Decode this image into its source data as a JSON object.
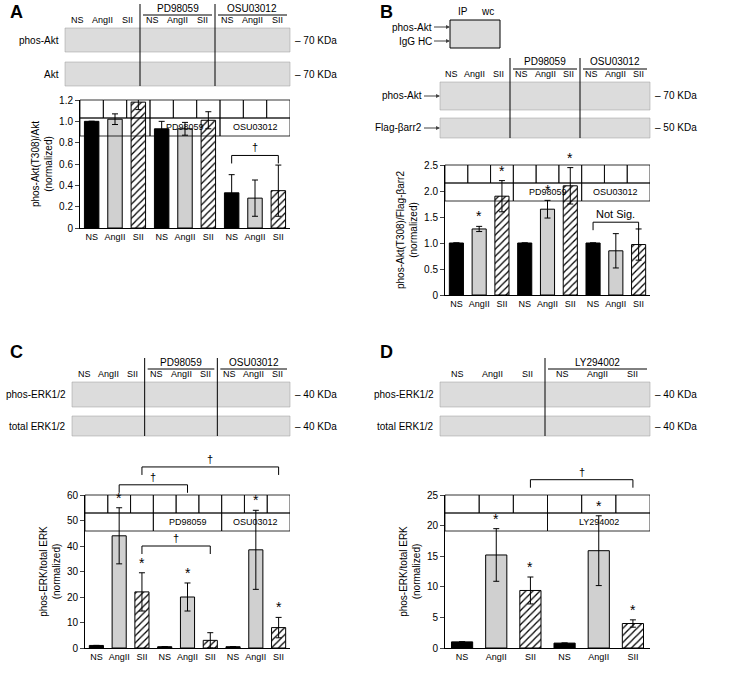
{
  "panel_labels": [
    "A",
    "B",
    "C",
    "D"
  ],
  "blots": [
    {
      "rows": [
        {
          "name": "phos-Akt",
          "kda_label": "– 70 KDa"
        },
        {
          "name": "Akt",
          "kda_label": "– 70 KDa"
        }
      ]
    },
    {
      "inset": {
        "headers": [
          "IP",
          "wc"
        ],
        "rows": [
          {
            "name": "phos-Akt",
            "marker": "arrow"
          },
          {
            "name": "IgG HC",
            "marker": "arrow"
          }
        ]
      },
      "rows": [
        {
          "name": "phos-Akt",
          "marker": "arrow",
          "kda_label": "– 70 KDa"
        },
        {
          "name": "Flag-βarr2",
          "marker": "arrow",
          "kda_label": "– 50 KDa"
        }
      ]
    },
    {
      "rows": [
        {
          "name": "phos-ERK1/2",
          "kda_label": "– 40 KDa"
        },
        {
          "name": "total ERK1/2",
          "kda_label": "– 40 KDa"
        }
      ]
    },
    {
      "rows": [
        {
          "name": "phos-ERK1/2",
          "kda_label": "– 40 KDa"
        },
        {
          "name": "total ERK1/2",
          "kda_label": "– 40 KDa"
        }
      ]
    }
  ],
  "chart_data": [
    {
      "type": "bar",
      "groups": [
        null,
        "PD98059",
        "OSU03012"
      ],
      "ylabel": [
        "phos-Akt(T308)/Akt",
        "(normalized)"
      ],
      "ylim": [
        0,
        1.2
      ],
      "yticks": [
        0,
        0.2,
        0.4,
        0.6,
        0.8,
        {
          "value": 1,
          "label": "1.0"
        },
        1.2
      ],
      "series": [
        {
          "name": "NS",
          "color": "#000000",
          "values": [
            1,
            0.93,
            0.33
          ],
          "errors": [
            0,
            0.07,
            0.17
          ],
          "significance": [
            null,
            null,
            null
          ]
        },
        {
          "name": "AngII",
          "color": "#d0d0d0",
          "values": [
            1.02,
            0.93,
            0.28
          ],
          "errors": [
            0.05,
            0.06,
            0.17
          ],
          "significance": [
            null,
            null,
            null
          ]
        },
        {
          "name": "SII",
          "color": "#ffffff",
          "marker": "hatched",
          "values": [
            1.18,
            1.01,
            0.35
          ],
          "errors": [
            0.07,
            0.08,
            0.24
          ],
          "significance": [
            null,
            null,
            null
          ]
        }
      ],
      "brackets": [
        {
          "from": 6,
          "to": 8,
          "y": 0.68,
          "label": "†"
        }
      ]
    },
    {
      "type": "bar",
      "groups": [
        null,
        "PD98059",
        "OSU03012"
      ],
      "ylabel": [
        "phos-Akt(T308)/Flag-βarr2",
        "(normalized)"
      ],
      "ylim": [
        0,
        2.5
      ],
      "yticks": [
        0,
        0.5,
        {
          "value": 1,
          "label": "1.0"
        },
        1.5,
        {
          "value": 2,
          "label": "2.0"
        },
        2.5
      ],
      "series": [
        {
          "name": "NS",
          "color": "#000000",
          "values": [
            1,
            1,
            1
          ],
          "errors": [
            0,
            0,
            0
          ],
          "significance": [
            null,
            null,
            null
          ]
        },
        {
          "name": "AngII",
          "color": "#d0d0d0",
          "values": [
            1.27,
            1.65,
            0.85
          ],
          "errors": [
            0.05,
            0.17,
            0.33
          ],
          "significance": [
            "*",
            "*",
            null
          ]
        },
        {
          "name": "SII",
          "color": "#ffffff",
          "marker": "hatched",
          "values": [
            1.9,
            2.1,
            0.97
          ],
          "errors": [
            0.3,
            0.35,
            0.3
          ],
          "significance": [
            "*",
            "*",
            null
          ]
        }
      ],
      "brackets": [
        {
          "from": 6,
          "to": 8,
          "y": 1.4,
          "label": "Not Sig."
        }
      ]
    },
    {
      "type": "bar",
      "groups": [
        null,
        "PD98059",
        "OSU03012"
      ],
      "ylabel": [
        "phos-ERK/total ERK",
        "(normalized)"
      ],
      "ylim": [
        0,
        60
      ],
      "yticks": [
        0,
        10,
        20,
        30,
        40,
        50,
        60
      ],
      "series": [
        {
          "name": "NS",
          "color": "#000000",
          "values": [
            1,
            0.5,
            0.5
          ],
          "errors": [
            0,
            0,
            0
          ],
          "significance": [
            null,
            null,
            null
          ]
        },
        {
          "name": "AngII",
          "color": "#d0d0d0",
          "values": [
            44,
            20,
            38.5
          ],
          "errors": [
            11,
            5.5,
            15.5
          ],
          "significance": [
            "*",
            "*",
            "*"
          ]
        },
        {
          "name": "SII",
          "color": "#ffffff",
          "marker": "hatched",
          "values": [
            22,
            3,
            8
          ],
          "errors": [
            7.5,
            3,
            4
          ],
          "significance": [
            "*",
            null,
            "*"
          ]
        }
      ],
      "brackets": [
        {
          "from": 2,
          "to": 5,
          "y": 40,
          "label": "†"
        },
        {
          "from": 1,
          "to": 4,
          "y": 64,
          "label": "†"
        },
        {
          "from": 2,
          "to": 8,
          "y": 71,
          "label": "†"
        }
      ]
    },
    {
      "type": "bar",
      "groups": [
        null,
        "LY294002"
      ],
      "ylabel": [
        "phos-ERK/total ERK",
        "(normalized)"
      ],
      "ylim": [
        0,
        25
      ],
      "yticks": [
        0,
        5,
        10,
        15,
        20,
        25
      ],
      "series": [
        {
          "name": "NS",
          "color": "#000000",
          "values": [
            1,
            0.8
          ],
          "errors": [
            0,
            0
          ],
          "significance": [
            null,
            null
          ]
        },
        {
          "name": "AngII",
          "color": "#d0d0d0",
          "values": [
            15.2,
            15.9
          ],
          "errors": [
            4.3,
            5.7
          ],
          "significance": [
            "*",
            "*"
          ]
        },
        {
          "name": "SII",
          "color": "#ffffff",
          "marker": "hatched",
          "values": [
            9.4,
            4
          ],
          "errors": [
            2.2,
            0.6
          ],
          "significance": [
            "*",
            "*"
          ]
        }
      ],
      "brackets": [
        {
          "from": 2,
          "to": 5,
          "y": 27.5,
          "label": "†"
        }
      ]
    }
  ]
}
